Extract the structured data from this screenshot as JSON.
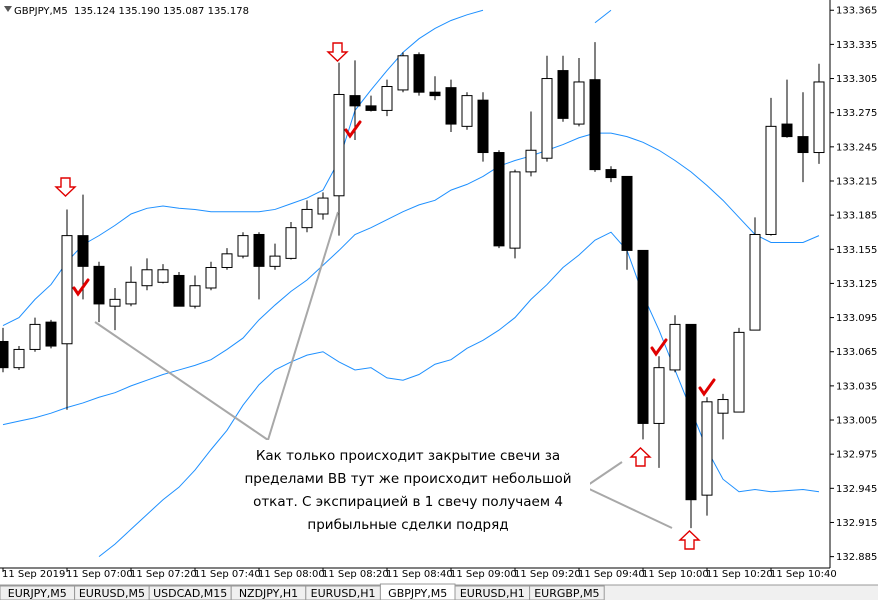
{
  "chart_data": {
    "type": "candlestick",
    "title": "GBPJPY,M5",
    "subtitle": "135.124 135.190 135.087 135.178",
    "categories": [
      "11 Sep 2019",
      null,
      null,
      null,
      "11 Sep 07:00",
      null,
      null,
      null,
      "11 Sep 07:20",
      null,
      null,
      null,
      "11 Sep 07:40",
      null,
      null,
      null,
      "11 Sep 08:00",
      null,
      null,
      null,
      "11 Sep 08:20",
      null,
      null,
      null,
      "11 Sep 08:40",
      null,
      null,
      null,
      "11 Sep 09:00",
      null,
      null,
      null,
      "11 Sep 09:20",
      null,
      null,
      null,
      "11 Sep 09:40",
      null,
      null,
      null,
      "11 Sep 10:00",
      null,
      null,
      null,
      "11 Sep 10:20",
      null,
      null,
      null,
      "11 Sep 10:40",
      null,
      null,
      null
    ],
    "open": [
      133.074,
      133.051,
      133.067,
      133.091,
      133.072,
      133.167,
      133.14,
      133.105,
      133.107,
      133.123,
      133.126,
      133.132,
      133.105,
      133.121,
      133.139,
      133.149,
      133.168,
      133.14,
      133.147,
      133.174,
      133.186,
      133.202,
      133.29,
      133.281,
      133.277,
      133.295,
      133.326,
      133.293,
      133.297,
      133.263,
      133.286,
      133.24,
      133.156,
      133.223,
      133.235,
      133.312,
      133.265,
      133.304,
      133.225,
      133.219,
      133.154,
      133.002,
      133.049,
      133.089,
      132.939,
      133.011,
      133.012,
      133.084,
      133.168,
      133.265,
      133.254,
      133.24
    ],
    "high": [
      133.086,
      133.07,
      133.095,
      133.093,
      133.19,
      133.203,
      133.144,
      133.121,
      133.14,
      133.147,
      133.142,
      133.135,
      133.132,
      133.144,
      133.156,
      133.17,
      133.17,
      133.16,
      133.179,
      133.198,
      133.205,
      133.319,
      133.321,
      133.29,
      133.304,
      133.328,
      133.328,
      133.307,
      133.304,
      133.293,
      133.293,
      133.242,
      133.225,
      133.276,
      133.325,
      133.325,
      133.323,
      133.337,
      133.228,
      133.219,
      133.154,
      133.061,
      133.097,
      133.089,
      133.025,
      133.028,
      133.086,
      133.183,
      133.288,
      133.304,
      133.293,
      133.318
    ],
    "low": [
      133.047,
      133.049,
      133.065,
      133.068,
      133.014,
      133.111,
      133.091,
      133.084,
      133.105,
      133.119,
      133.125,
      133.105,
      133.103,
      133.119,
      133.137,
      133.147,
      133.111,
      133.137,
      133.146,
      133.17,
      133.181,
      133.167,
      133.251,
      133.276,
      133.272,
      133.293,
      133.29,
      133.286,
      133.258,
      133.26,
      133.232,
      133.156,
      133.147,
      133.219,
      133.232,
      133.267,
      133.263,
      133.223,
      133.214,
      133.137,
      132.988,
      132.963,
      133.047,
      132.91,
      132.921,
      132.988,
      133.012,
      133.084,
      133.167,
      133.253,
      133.214,
      133.23
    ],
    "close": [
      133.051,
      133.067,
      133.089,
      133.07,
      133.167,
      133.14,
      133.107,
      133.111,
      133.126,
      133.137,
      133.137,
      133.105,
      133.123,
      133.139,
      133.151,
      133.167,
      133.14,
      133.149,
      133.174,
      133.19,
      133.2,
      133.291,
      133.281,
      133.277,
      133.298,
      133.325,
      133.293,
      133.29,
      133.265,
      133.29,
      133.24,
      133.158,
      133.223,
      133.242,
      133.305,
      133.27,
      133.302,
      133.225,
      133.218,
      133.154,
      133.002,
      133.051,
      133.089,
      132.935,
      133.021,
      133.023,
      133.082,
      133.168,
      133.263,
      133.254,
      133.24,
      133.302
    ],
    "band_upper": [
      133.088,
      133.095,
      133.111,
      133.124,
      133.144,
      133.159,
      133.167,
      133.176,
      133.186,
      133.191,
      133.193,
      133.191,
      133.19,
      133.188,
      133.188,
      133.188,
      133.188,
      133.19,
      133.195,
      133.2,
      133.207,
      133.233,
      133.277,
      133.295,
      133.312,
      133.328,
      133.34,
      133.349,
      133.356,
      133.361,
      133.365,
      null,
      null,
      null,
      null,
      null,
      null,
      133.354,
      133.365,
      null,
      null,
      null,
      null,
      null,
      null,
      null,
      null,
      null,
      null,
      null,
      null,
      null
    ],
    "band_middle": [
      133.001,
      133.004,
      133.007,
      133.011,
      133.016,
      133.02,
      133.025,
      133.029,
      133.035,
      133.04,
      133.045,
      133.049,
      133.053,
      133.058,
      133.067,
      133.077,
      133.093,
      133.106,
      133.118,
      133.128,
      133.141,
      133.154,
      133.168,
      133.174,
      133.181,
      133.188,
      133.194,
      133.198,
      133.207,
      133.212,
      133.219,
      133.228,
      133.233,
      133.237,
      133.242,
      133.247,
      133.253,
      133.257,
      133.257,
      133.254,
      133.249,
      133.242,
      133.233,
      133.223,
      133.211,
      133.198,
      133.183,
      133.168,
      133.161,
      133.161,
      133.161,
      133.167
    ],
    "band_lower": [
      null,
      null,
      null,
      null,
      null,
      null,
      132.885,
      132.896,
      132.909,
      132.922,
      132.935,
      132.946,
      132.961,
      132.979,
      132.996,
      133.018,
      133.036,
      133.049,
      133.056,
      133.062,
      133.065,
      133.056,
      133.049,
      133.051,
      133.042,
      133.04,
      133.045,
      133.054,
      133.058,
      133.068,
      133.075,
      133.084,
      133.095,
      133.111,
      133.124,
      133.139,
      133.15,
      133.163,
      133.17,
      133.154,
      133.115,
      133.084,
      133.049,
      133.014,
      132.979,
      132.953,
      132.942,
      132.944,
      132.942,
      132.943,
      132.944,
      132.942
    ],
    "band_color": "#1e90ff",
    "up_color": "#ffffff",
    "down_color": "#000000",
    "ylim": [
      132.875,
      133.374
    ],
    "yticks": [
      133.365,
      133.335,
      133.305,
      133.275,
      133.245,
      133.215,
      133.185,
      133.155,
      133.125,
      133.095,
      133.065,
      133.035,
      133.005,
      132.975,
      132.945,
      132.915,
      132.885
    ],
    "annotation": [
      "Как только происходит закрытие свечи за",
      "пределами BB тут же происходит небольшой",
      "откат. С экспирацией в 1 свечу получаем 4",
      "прибыльные сделки подряд"
    ]
  },
  "tabs": [
    "EURJPY,M5",
    "EURUSD,M5",
    "USDCAD,M15",
    "NZDJPY,H1",
    "EURUSD,H1",
    "GBPJPY,M5",
    "EURUSD,H1",
    "EURGBP,M5"
  ]
}
